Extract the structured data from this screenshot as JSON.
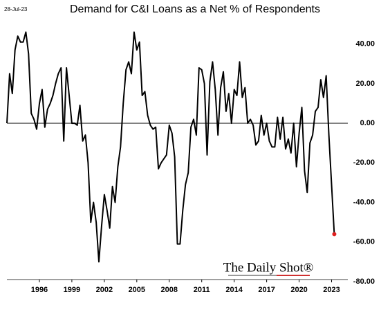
{
  "chart_data": {
    "type": "line",
    "date_label": "28-Jul-23",
    "title": "Demand for C&I Loans as a Net % of Respondents",
    "watermark": "The Daily Shot®",
    "x": [
      1993,
      1993.25,
      1993.5,
      1993.75,
      1994,
      1994.25,
      1994.5,
      1994.75,
      1995,
      1995.25,
      1995.5,
      1995.75,
      1996,
      1996.25,
      1996.5,
      1996.75,
      1997,
      1997.25,
      1997.5,
      1997.75,
      1998,
      1998.25,
      1998.5,
      1998.75,
      1999,
      1999.25,
      1999.5,
      1999.75,
      2000,
      2000.25,
      2000.5,
      2000.75,
      2001,
      2001.25,
      2001.5,
      2001.75,
      2002,
      2002.25,
      2002.5,
      2002.75,
      2003,
      2003.25,
      2003.5,
      2003.75,
      2004,
      2004.25,
      2004.5,
      2004.75,
      2005,
      2005.25,
      2005.5,
      2005.75,
      2006,
      2006.25,
      2006.5,
      2006.75,
      2007,
      2007.25,
      2007.5,
      2007.75,
      2008,
      2008.25,
      2008.5,
      2008.75,
      2009,
      2009.25,
      2009.5,
      2009.75,
      2010,
      2010.25,
      2010.5,
      2010.75,
      2011,
      2011.25,
      2011.5,
      2011.75,
      2012,
      2012.25,
      2012.5,
      2012.75,
      2013,
      2013.25,
      2013.5,
      2013.75,
      2014,
      2014.25,
      2014.5,
      2014.75,
      2015,
      2015.25,
      2015.5,
      2015.75,
      2016,
      2016.25,
      2016.5,
      2016.75,
      2017,
      2017.25,
      2017.5,
      2017.75,
      2018,
      2018.25,
      2018.5,
      2018.75,
      2019,
      2019.25,
      2019.5,
      2019.75,
      2020,
      2020.25,
      2020.5,
      2020.75,
      2021,
      2021.25,
      2021.5,
      2021.75,
      2022,
      2022.25,
      2022.5,
      2022.75,
      2023,
      2023.25
    ],
    "series": [
      {
        "color": "#000000",
        "last_point_color": "#e02020",
        "values": [
          0,
          25,
          15,
          37,
          44,
          41,
          41,
          46,
          35,
          5,
          2,
          -3,
          10,
          17,
          -2,
          7,
          10,
          14,
          20,
          25,
          28,
          -9,
          28,
          14,
          0,
          0,
          -1,
          9,
          -9,
          -6,
          -20,
          -50,
          -40,
          -50,
          -70,
          -52,
          -36,
          -44,
          -53,
          -32,
          -40,
          -22,
          -12,
          10,
          27,
          31,
          25,
          46,
          37,
          41,
          14,
          16,
          4,
          -1,
          -3,
          -2,
          -23,
          -20,
          -18,
          -16,
          -1,
          -5,
          -17,
          -61,
          -61,
          -44,
          -31,
          -25,
          -2,
          2,
          -6,
          28,
          27,
          20,
          -16,
          21,
          31,
          17,
          -6,
          18,
          26,
          6,
          15,
          0,
          17,
          14,
          31,
          13,
          18,
          0,
          2,
          -1,
          -11,
          -9,
          4,
          -6,
          0,
          -9,
          -12,
          -12,
          3,
          -8,
          3,
          -13,
          -8,
          -15,
          0,
          -22,
          -5,
          8,
          -24,
          -35,
          -10,
          -6,
          6,
          8,
          22,
          13,
          24,
          -6,
          -31,
          -56
        ]
      }
    ],
    "xlim": [
      1993,
      2024.5
    ],
    "xticks": [
      1996,
      1999,
      2002,
      2005,
      2008,
      2011,
      2014,
      2017,
      2020,
      2023
    ],
    "ylim": [
      -80,
      50
    ],
    "yticks": [
      {
        "value": -80,
        "label": "-80.00"
      },
      {
        "value": -60,
        "label": "-60.00"
      },
      {
        "value": -40,
        "label": "-40.00"
      },
      {
        "value": -20,
        "label": "-20.00"
      },
      {
        "value": 0,
        "label": "0.00"
      },
      {
        "value": 20,
        "label": "20.00"
      },
      {
        "value": 40,
        "label": "40.00"
      }
    ],
    "hline": 0,
    "grid": false
  }
}
